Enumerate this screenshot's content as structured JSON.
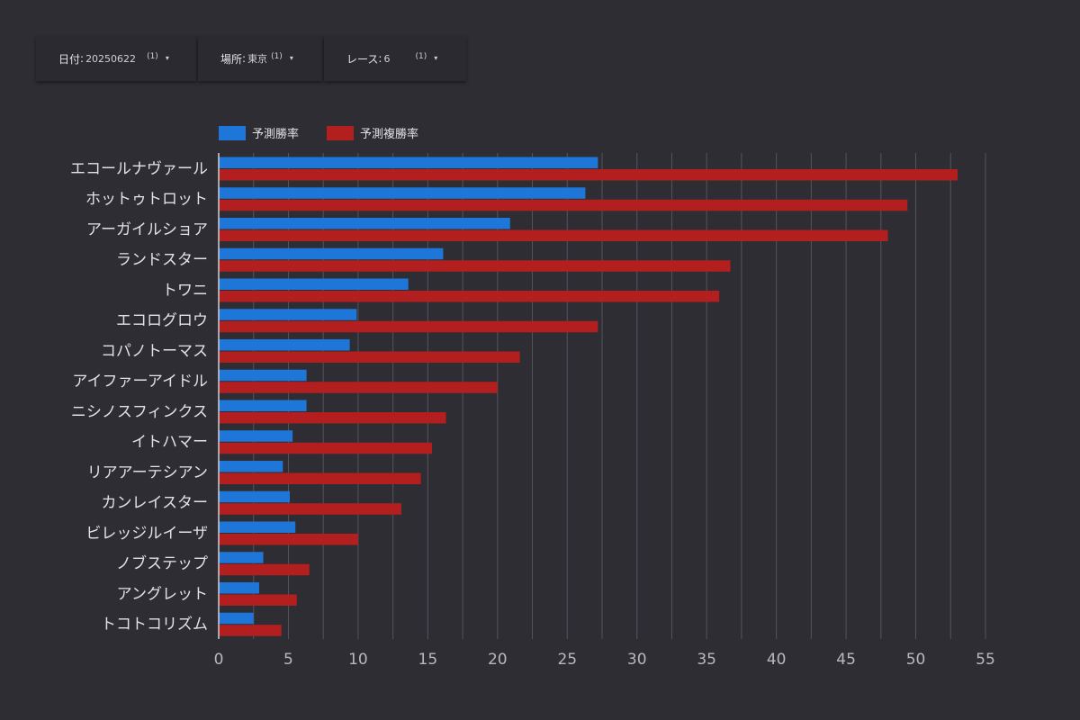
{
  "filters": [
    {
      "label": "日付",
      "value": "20250622",
      "count": "(1)",
      "caret": "▾"
    },
    {
      "label": "場所",
      "value": "東京",
      "count": "(1)",
      "caret": "▾"
    },
    {
      "label": "レース",
      "value": "6",
      "count": "(1)",
      "caret": "▾"
    }
  ],
  "colors": {
    "background": "#2e2d33",
    "series_win": "#1e77d8",
    "series_place": "#b31e1e",
    "grid": "#55545b"
  },
  "chart_data": {
    "type": "bar",
    "orientation": "horizontal",
    "categories": [
      "エコールナヴァール",
      "ホットゥトロット",
      "アーガイルショア",
      "ランドスター",
      "トワニ",
      "エコログロウ",
      "コパノトーマス",
      "アイファーアイドル",
      "ニシノスフィンクス",
      "イトハマー",
      "リアアーテシアン",
      "カンレイスター",
      "ビレッジルイーザ",
      "ノブステップ",
      "アングレット",
      "トコトコリズム"
    ],
    "series": [
      {
        "name": "予測勝率",
        "color": "#1e77d8",
        "values": [
          27.2,
          26.3,
          20.9,
          16.1,
          13.6,
          9.9,
          9.4,
          6.3,
          6.3,
          5.3,
          4.6,
          5.1,
          5.5,
          3.2,
          2.9,
          2.5
        ]
      },
      {
        "name": "予測複勝率",
        "color": "#b31e1e",
        "values": [
          53.0,
          49.4,
          48.0,
          36.7,
          35.9,
          27.2,
          21.6,
          20.0,
          16.3,
          15.3,
          14.5,
          13.1,
          10.0,
          6.5,
          5.6,
          4.5
        ]
      }
    ],
    "x_ticks": [
      "0",
      "5",
      "10",
      "15",
      "20",
      "25",
      "30",
      "35",
      "40",
      "45",
      "50",
      "55"
    ],
    "xlim": [
      0,
      55
    ],
    "legend_position": "top-left",
    "grid": "vertical"
  }
}
